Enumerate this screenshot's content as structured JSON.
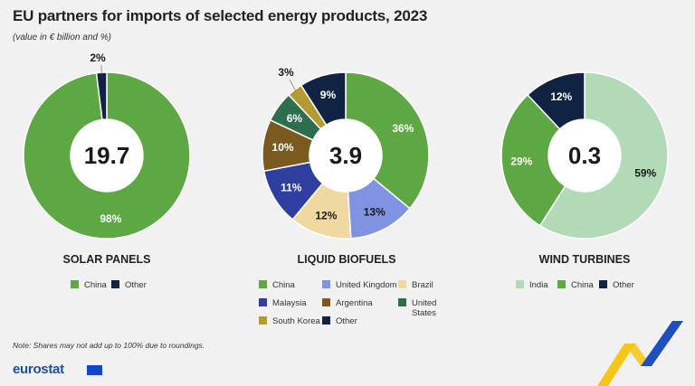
{
  "title": "EU partners for imports of selected energy products, 2023",
  "subtitle": "(value in € billion and %)",
  "note": "Note: Shares may not add up to 100% due to roundings.",
  "logo_text": "eurostat",
  "colors": {
    "china": "#5da843",
    "other": "#102343",
    "united_kingdom": "#7f93e0",
    "brazil": "#f0d9a0",
    "malaysia": "#2e3fa0",
    "argentina": "#7b5a1f",
    "united_states": "#2d6e4e",
    "south_korea": "#b39a35",
    "india": "#b0dbb6"
  },
  "chart_data": [
    {
      "type": "pie",
      "title": "SOLAR PANELS",
      "center_value": "19.7",
      "slices": [
        {
          "name": "China",
          "value": 98,
          "label": "98%",
          "color": "#5da843"
        },
        {
          "name": "Other",
          "value": 2,
          "label": "2%",
          "color": "#102343"
        }
      ],
      "legend": [
        "China",
        "Other"
      ]
    },
    {
      "type": "pie",
      "title": "LIQUID BIOFUELS",
      "center_value": "3.9",
      "slices": [
        {
          "name": "China",
          "value": 36,
          "label": "36%",
          "color": "#5da843"
        },
        {
          "name": "United Kingdom",
          "value": 13,
          "label": "13%",
          "color": "#7f93e0"
        },
        {
          "name": "Brazil",
          "value": 12,
          "label": "12%",
          "color": "#f0d9a0"
        },
        {
          "name": "Malaysia",
          "value": 11,
          "label": "11%",
          "color": "#2e3fa0"
        },
        {
          "name": "Argentina",
          "value": 10,
          "label": "10%",
          "color": "#7b5a1f"
        },
        {
          "name": "United States",
          "value": 6,
          "label": "6%",
          "color": "#2d6e4e"
        },
        {
          "name": "South Korea",
          "value": 3,
          "label": "3%",
          "color": "#b39a35"
        },
        {
          "name": "Other",
          "value": 9,
          "label": "9%",
          "color": "#102343"
        }
      ],
      "legend": [
        "China",
        "United Kingdom",
        "Brazil",
        "Malaysia",
        "Argentina",
        "United States",
        "South Korea",
        "Other"
      ]
    },
    {
      "type": "pie",
      "title": "WIND TURBINES",
      "center_value": "0.3",
      "slices": [
        {
          "name": "India",
          "value": 59,
          "label": "59%",
          "color": "#b0dbb6"
        },
        {
          "name": "China",
          "value": 29,
          "label": "29%",
          "color": "#5da843"
        },
        {
          "name": "Other",
          "value": 12,
          "label": "12%",
          "color": "#102343"
        }
      ],
      "legend": [
        "India",
        "China",
        "Other"
      ]
    }
  ]
}
